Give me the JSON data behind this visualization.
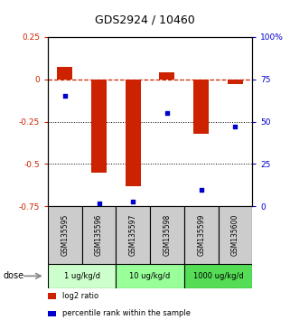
{
  "title": "GDS2924 / 10460",
  "samples": [
    "GSM135595",
    "GSM135596",
    "GSM135597",
    "GSM135598",
    "GSM135599",
    "GSM135600"
  ],
  "log2_ratio": [
    0.07,
    -0.55,
    -0.63,
    0.04,
    -0.32,
    -0.03
  ],
  "percentile_rank": [
    65,
    2,
    3,
    55,
    10,
    47
  ],
  "bar_color": "#cc2200",
  "dot_color": "#0000cc",
  "left_ylim": [
    -0.75,
    0.25
  ],
  "right_ylim": [
    0,
    100
  ],
  "left_yticks": [
    0.25,
    0,
    -0.25,
    -0.5,
    -0.75
  ],
  "right_yticks": [
    100,
    75,
    50,
    25,
    0
  ],
  "left_ytick_labels": [
    "0.25",
    "0",
    "-0.25",
    "-0.5",
    "-0.75"
  ],
  "right_ytick_labels": [
    "100%",
    "75",
    "50",
    "25",
    "0"
  ],
  "dose_groups": [
    {
      "label": "1 ug/kg/d",
      "samples": [
        "GSM135595",
        "GSM135596"
      ],
      "color": "#ccffcc"
    },
    {
      "label": "10 ug/kg/d",
      "samples": [
        "GSM135597",
        "GSM135598"
      ],
      "color": "#99ff99"
    },
    {
      "label": "1000 ug/kg/d",
      "samples": [
        "GSM135599",
        "GSM135600"
      ],
      "color": "#55dd55"
    }
  ],
  "dose_label": "dose",
  "legend_items": [
    {
      "label": "log2 ratio",
      "color": "#cc2200"
    },
    {
      "label": "percentile rank within the sample",
      "color": "#0000cc"
    }
  ],
  "hline_color": "#cc2200",
  "grid_color": "#000000",
  "sample_box_color": "#cccccc"
}
